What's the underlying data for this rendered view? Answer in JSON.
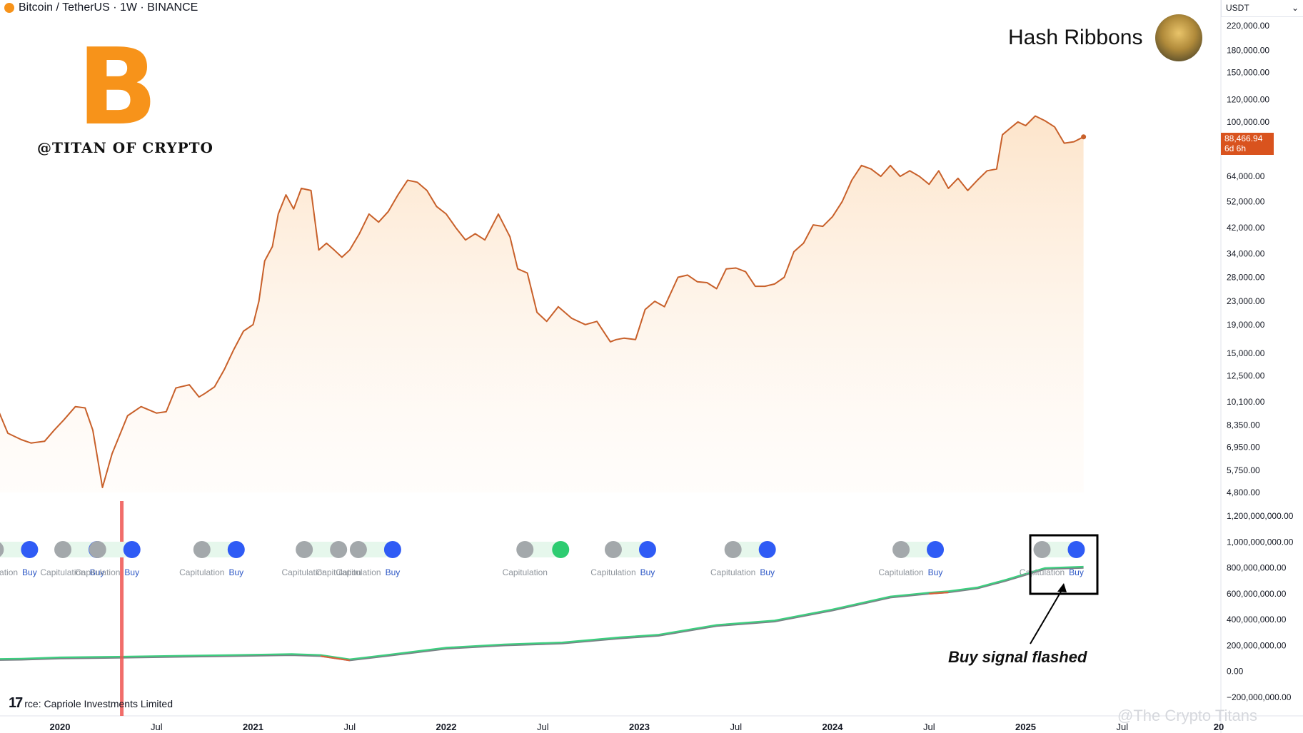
{
  "header": {
    "symbol_text": "Bitcoin / TetherUS · 1W · BINANCE"
  },
  "logo": {
    "handle": "@TITAN OF CRYPTO",
    "glyph": "B"
  },
  "title": "Hash Ribbons",
  "currency": {
    "label": "USDT",
    "chevron": "⌄"
  },
  "last_price": {
    "value": "88,466.94",
    "countdown": "6d 6h"
  },
  "annotation": "Buy signal flashed",
  "source": {
    "text": "rce: Capriole Investments Limited",
    "tv_logo": "17"
  },
  "watermark": "@The Crypto Titans",
  "colors": {
    "price_line": "#c8602a",
    "ribbon_green": "#3ccf7f",
    "ribbon_red": "#d9603c",
    "ribbon_gray": "#7b8086",
    "buy_blue": "#2f5bf5",
    "capit_gray": "#a3a8ab",
    "capit_green": "#2ecc71",
    "marker_red": "#ef5350"
  },
  "chart_data": [
    {
      "type": "line",
      "title": "Bitcoin / TetherUS · 1W · BINANCE",
      "y_scale": "log",
      "y_ticks": [
        {
          "value": 220000,
          "label": "220,000.00"
        },
        {
          "value": 180000,
          "label": "180,000.00"
        },
        {
          "value": 150000,
          "label": "150,000.00"
        },
        {
          "value": 120000,
          "label": "120,000.00"
        },
        {
          "value": 100000,
          "label": "100,000.00"
        },
        {
          "value": 64000,
          "label": "64,000.00"
        },
        {
          "value": 52000,
          "label": "52,000.00"
        },
        {
          "value": 42000,
          "label": "42,000.00"
        },
        {
          "value": 34000,
          "label": "34,000.00"
        },
        {
          "value": 28000,
          "label": "28,000.00"
        },
        {
          "value": 23000,
          "label": "23,000.00"
        },
        {
          "value": 19000,
          "label": "19,000.00"
        },
        {
          "value": 15000,
          "label": "15,000.00"
        },
        {
          "value": 12500,
          "label": "12,500.00"
        },
        {
          "value": 10100,
          "label": "10,100.00"
        },
        {
          "value": 8350,
          "label": "8,350.00"
        },
        {
          "value": 6950,
          "label": "6,950.00"
        },
        {
          "value": 5750,
          "label": "5,750.00"
        },
        {
          "value": 4800,
          "label": "4,800.00"
        }
      ],
      "x_ticks": [
        "2020",
        "Jul",
        "2021",
        "Jul",
        "2022",
        "Jul",
        "2023",
        "Jul",
        "2024",
        "Jul",
        "2025",
        "Jul",
        "20"
      ],
      "x_tick_years": [
        2020.0,
        2020.5,
        2021.0,
        2021.5,
        2022.0,
        2022.5,
        2023.0,
        2023.5,
        2024.0,
        2024.5,
        2025.0,
        2025.5,
        2026.0
      ],
      "x": [
        2019.55,
        2019.6,
        2019.67,
        2019.73,
        2019.8,
        2019.85,
        2019.92,
        2019.97,
        2020.02,
        2020.08,
        2020.13,
        2020.17,
        2020.22,
        2020.27,
        2020.35,
        2020.42,
        2020.5,
        2020.55,
        2020.6,
        2020.67,
        2020.72,
        2020.75,
        2020.8,
        2020.85,
        2020.9,
        2020.95,
        2021.0,
        2021.03,
        2021.06,
        2021.1,
        2021.13,
        2021.17,
        2021.21,
        2021.25,
        2021.3,
        2021.34,
        2021.38,
        2021.42,
        2021.46,
        2021.5,
        2021.55,
        2021.6,
        2021.65,
        2021.7,
        2021.75,
        2021.8,
        2021.85,
        2021.9,
        2021.95,
        2022.0,
        2022.05,
        2022.1,
        2022.15,
        2022.2,
        2022.27,
        2022.33,
        2022.37,
        2022.42,
        2022.47,
        2022.52,
        2022.58,
        2022.65,
        2022.72,
        2022.78,
        2022.85,
        2022.88,
        2022.92,
        2022.98,
        2023.03,
        2023.08,
        2023.13,
        2023.2,
        2023.25,
        2023.3,
        2023.35,
        2023.4,
        2023.45,
        2023.5,
        2023.55,
        2023.6,
        2023.65,
        2023.7,
        2023.75,
        2023.8,
        2023.85,
        2023.9,
        2023.95,
        2024.0,
        2024.05,
        2024.1,
        2024.15,
        2024.2,
        2024.25,
        2024.3,
        2024.35,
        2024.4,
        2024.45,
        2024.5,
        2024.55,
        2024.6,
        2024.65,
        2024.7,
        2024.75,
        2024.8,
        2024.85,
        2024.88,
        2024.92,
        2024.96,
        2025.0,
        2025.05,
        2025.1,
        2025.15,
        2025.2,
        2025.25,
        2025.3
      ],
      "y": [
        10200,
        9100,
        9800,
        7800,
        7400,
        7200,
        7300,
        8000,
        8700,
        9700,
        9600,
        8000,
        5000,
        6600,
        9000,
        9700,
        9200,
        9300,
        11300,
        11600,
        10500,
        10800,
        11400,
        13100,
        15500,
        18000,
        19000,
        23000,
        32000,
        36000,
        47000,
        55000,
        49000,
        58000,
        57000,
        35000,
        37000,
        35000,
        33000,
        35000,
        40000,
        47000,
        44000,
        48000,
        55000,
        62000,
        61000,
        57000,
        50000,
        47000,
        42000,
        38000,
        40000,
        38000,
        47000,
        39000,
        30000,
        29000,
        21000,
        19500,
        22000,
        20000,
        19000,
        19500,
        16500,
        16800,
        17000,
        16800,
        21500,
        23000,
        22000,
        28000,
        28500,
        27000,
        26800,
        25500,
        30000,
        30200,
        29300,
        26000,
        26000,
        26500,
        28000,
        34500,
        37000,
        43000,
        42500,
        46000,
        52000,
        62000,
        70000,
        68000,
        64000,
        70000,
        64000,
        67000,
        64000,
        60000,
        67000,
        58000,
        63000,
        57000,
        62000,
        67000,
        68000,
        90000,
        95000,
        100000,
        97000,
        105000,
        101000,
        96000,
        84000,
        85000,
        88466.94
      ],
      "last_value": 88466.94
    },
    {
      "type": "line",
      "title": "Hash Ribbons",
      "y_ticks": [
        {
          "value": 1200000000,
          "label": "1,200,000,000.00"
        },
        {
          "value": 1000000000,
          "label": "1,000,000,000.00"
        },
        {
          "value": 800000000,
          "label": "800,000,000.00"
        },
        {
          "value": 600000000,
          "label": "600,000,000.00"
        },
        {
          "value": 400000000,
          "label": "400,000,000.00"
        },
        {
          "value": 200000000,
          "label": "200,000,000.00"
        },
        {
          "value": 0,
          "label": "0.00"
        },
        {
          "value": -200000000,
          "label": "−200,000,000.00"
        }
      ],
      "series": [
        {
          "x": [
            2019.55,
            2019.8,
            2020.0,
            2020.3,
            2020.6,
            2020.9,
            2021.2,
            2021.35,
            2021.5,
            2021.7,
            2022.0,
            2022.3,
            2022.6,
            2022.9,
            2023.1,
            2023.4,
            2023.7,
            2024.0,
            2024.3,
            2024.5,
            2024.6,
            2024.75,
            2024.9,
            2025.1,
            2025.3
          ],
          "y": [
            85000000,
            90000000,
            100000000,
            105000000,
            112000000,
            118000000,
            125000000,
            118000000,
            85000000,
            120000000,
            175000000,
            200000000,
            215000000,
            255000000,
            275000000,
            350000000,
            385000000,
            470000000,
            570000000,
            600000000,
            610000000,
            640000000,
            700000000,
            790000000,
            800000000
          ]
        }
      ],
      "signals": [
        {
          "x": 2019.75,
          "kind": "Capitulation→Buy"
        },
        {
          "x": 2020.1,
          "kind": "Capitulation→Buy"
        },
        {
          "x": 2020.28,
          "kind": "Capitulation→Buy"
        },
        {
          "x": 2020.82,
          "kind": "Capitulation→Buy"
        },
        {
          "x": 2021.35,
          "kind": "Capitulation→Capitulation"
        },
        {
          "x": 2021.63,
          "kind": "Capitulation→Buy"
        },
        {
          "x": 2022.5,
          "kind": "Capitulation"
        },
        {
          "x": 2022.95,
          "kind": "Capitulation→Buy"
        },
        {
          "x": 2023.57,
          "kind": "Capitulation→Buy"
        },
        {
          "x": 2024.44,
          "kind": "Capitulation→Buy"
        },
        {
          "x": 2025.17,
          "kind": "Capitulation→Buy"
        }
      ],
      "signal_labels": {
        "capitulation": "Capitulation",
        "buy": "Buy"
      },
      "marker_x": 2020.32
    }
  ]
}
